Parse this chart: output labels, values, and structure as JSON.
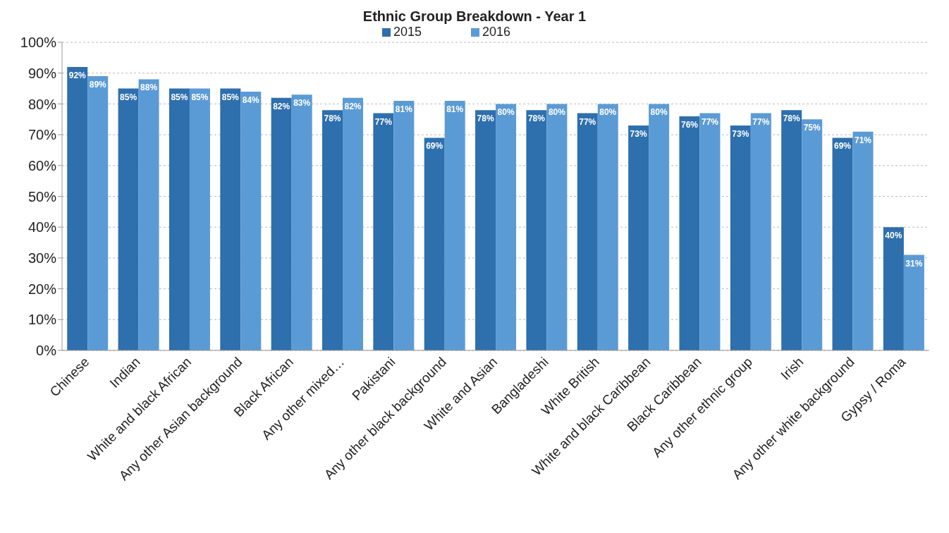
{
  "chart_data": {
    "type": "bar",
    "title": "Ethnic Group Breakdown - Year 1",
    "categories": [
      "Chinese",
      "Indian",
      "White and black African",
      "Any other Asian background",
      "Black African",
      "Any other mixed…",
      "Pakistani",
      "Any other black background",
      "White and Asian",
      "Bangladeshi",
      "White British",
      "White and black Caribbean",
      "Black Caribbean",
      "Any other ethnic group",
      "Irish",
      "Any other white background",
      "Gypsy / Roma"
    ],
    "series": [
      {
        "name": "2015",
        "color": "#2e6fad",
        "values": [
          92,
          85,
          85,
          85,
          82,
          78,
          77,
          69,
          78,
          78,
          77,
          73,
          76,
          73,
          78,
          69,
          40
        ],
        "value_labels": [
          "92%",
          "85%",
          "85%",
          "85%",
          "82%",
          "78%",
          "77%",
          "69%",
          "78%",
          "78%",
          "77%",
          "73%",
          "76%",
          "73%",
          "78%",
          "69%",
          "40%"
        ]
      },
      {
        "name": "2016",
        "color": "#5b9bd5",
        "values": [
          89,
          88,
          85,
          84,
          83,
          82,
          81,
          81,
          80,
          80,
          80,
          80,
          77,
          77,
          75,
          71,
          31
        ],
        "value_labels": [
          "89%",
          "88%",
          "85%",
          "84%",
          "83%",
          "82%",
          "81%",
          "81%",
          "80%",
          "80%",
          "80%",
          "80%",
          "77%",
          "77%",
          "75%",
          "71%",
          "31%"
        ]
      }
    ],
    "ylim": [
      0,
      100
    ],
    "yticks": [
      {
        "value": 0,
        "label": "0%"
      },
      {
        "value": 10,
        "label": "10%"
      },
      {
        "value": 20,
        "label": "20%"
      },
      {
        "value": 30,
        "label": "30%"
      },
      {
        "value": 40,
        "label": "40%"
      },
      {
        "value": 50,
        "label": "50%"
      },
      {
        "value": 60,
        "label": "60%"
      },
      {
        "value": 70,
        "label": "70%"
      },
      {
        "value": 80,
        "label": "80%"
      },
      {
        "value": 90,
        "label": "90%"
      },
      {
        "value": 100,
        "label": "100%"
      }
    ],
    "grid": "y",
    "legend": "top"
  }
}
